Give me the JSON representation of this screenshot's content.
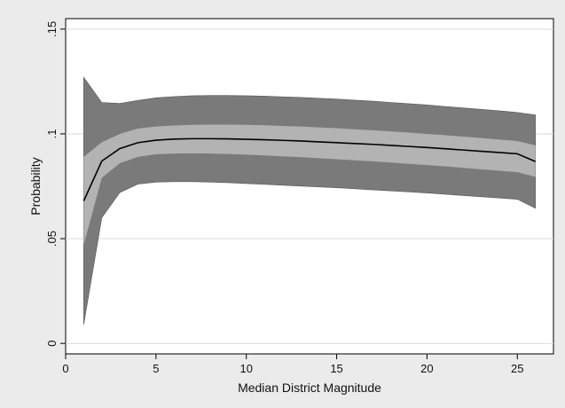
{
  "chart_data": {
    "type": "area",
    "title": "",
    "xlabel": "Median District Magnitude",
    "ylabel": "Probability",
    "xlim": [
      0,
      27
    ],
    "ylim": [
      -0.005,
      0.155
    ],
    "x_ticks": [
      0,
      5,
      10,
      15,
      20,
      25
    ],
    "x_tick_labels": [
      "0",
      "5",
      "10",
      "15",
      "20",
      "25"
    ],
    "y_ticks": [
      0,
      0.05,
      0.1,
      0.15
    ],
    "y_tick_labels": [
      "0",
      ".05",
      ".1",
      ".15"
    ],
    "grid": true,
    "legend": "none",
    "colors": {
      "outer_background": "#ebebeb",
      "plot_background": "#ffffff",
      "outer_band": "#7a7a7a",
      "inner_band": "#b3b3b3",
      "line": "#000000",
      "grid": "#d9d9d9"
    },
    "x": [
      1,
      2,
      3,
      4,
      5,
      6,
      7,
      8,
      9,
      10,
      11,
      12,
      13,
      14,
      15,
      16,
      17,
      18,
      19,
      20,
      21,
      22,
      23,
      24,
      25,
      26
    ],
    "series": [
      {
        "role": "outer_band",
        "lower": [
          0.009,
          0.06,
          0.072,
          0.076,
          0.077,
          0.0772,
          0.0772,
          0.077,
          0.0767,
          0.0763,
          0.0759,
          0.0755,
          0.0751,
          0.0747,
          0.0743,
          0.0738,
          0.0733,
          0.0728,
          0.0723,
          0.0718,
          0.0712,
          0.0706,
          0.07,
          0.0694,
          0.0688,
          0.0645
        ],
        "upper": [
          0.127,
          0.115,
          0.1145,
          0.116,
          0.1172,
          0.1178,
          0.1182,
          0.1183,
          0.1183,
          0.1182,
          0.118,
          0.1177,
          0.1174,
          0.117,
          0.1166,
          0.1161,
          0.1156,
          0.115,
          0.1144,
          0.1138,
          0.1131,
          0.1124,
          0.1117,
          0.111,
          0.1102,
          0.109
        ]
      },
      {
        "role": "inner_band",
        "lower": [
          0.047,
          0.079,
          0.086,
          0.089,
          0.0903,
          0.0906,
          0.0907,
          0.0906,
          0.0904,
          0.0901,
          0.0897,
          0.0893,
          0.0889,
          0.0884,
          0.0879,
          0.0874,
          0.0869,
          0.0863,
          0.0857,
          0.0851,
          0.0845,
          0.0838,
          0.0831,
          0.0824,
          0.0817,
          0.0795
        ],
        "upper": [
          0.089,
          0.096,
          0.1,
          0.1025,
          0.1035,
          0.104,
          0.1043,
          0.1044,
          0.1044,
          0.1043,
          0.1041,
          0.1038,
          0.1035,
          0.1031,
          0.1027,
          0.1022,
          0.1017,
          0.1012,
          0.1006,
          0.1,
          0.0994,
          0.0987,
          0.098,
          0.0973,
          0.0966,
          0.0945
        ]
      },
      {
        "role": "line",
        "values": [
          0.068,
          0.087,
          0.093,
          0.0958,
          0.097,
          0.0975,
          0.0977,
          0.0977,
          0.0976,
          0.0974,
          0.0972,
          0.0969,
          0.0966,
          0.0962,
          0.0958,
          0.0954,
          0.095,
          0.0945,
          0.094,
          0.0935,
          0.0929,
          0.0923,
          0.0917,
          0.0911,
          0.0905,
          0.0868
        ]
      }
    ]
  }
}
